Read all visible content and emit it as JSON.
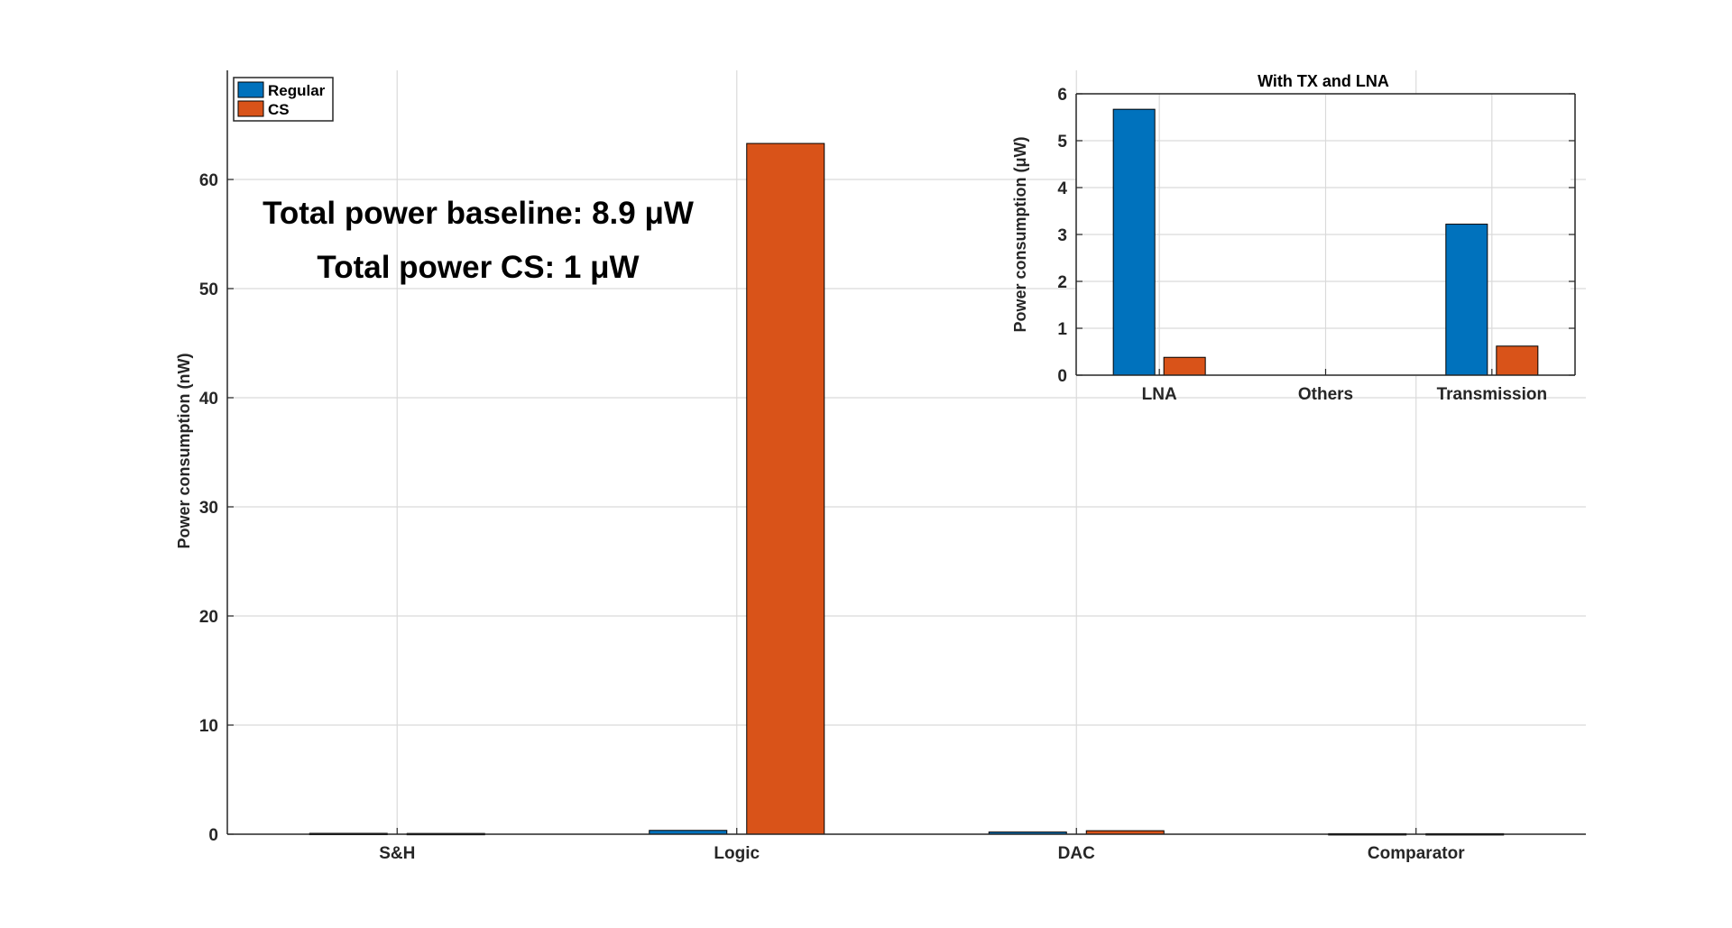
{
  "chart_data": [
    {
      "type": "bar",
      "categories": [
        "S&H",
        "Logic",
        "DAC",
        "Comparator"
      ],
      "series": [
        {
          "name": "Regular",
          "values": [
            0.08,
            0.35,
            0.2,
            0.05
          ]
        },
        {
          "name": "CS",
          "values": [
            0.07,
            63.3,
            0.32,
            0.05
          ]
        }
      ],
      "xlabel": "",
      "ylabel": "Power consumption (nW)",
      "ylim": [
        0,
        70
      ],
      "yticks": [
        0,
        10,
        20,
        30,
        40,
        50,
        60
      ],
      "grid": true,
      "legend_position": "top-left",
      "annotations": [
        "Total power baseline: 8.9 μW",
        "Total power CS: 1 μW"
      ]
    },
    {
      "type": "bar",
      "title": "With TX and LNA",
      "categories": [
        "LNA",
        "Others",
        "Transmission"
      ],
      "series": [
        {
          "name": "Regular",
          "values": [
            5.67,
            0,
            3.22
          ]
        },
        {
          "name": "CS",
          "values": [
            0.38,
            0,
            0.62
          ]
        }
      ],
      "xlabel": "",
      "ylabel": "Power consumption (μW)",
      "ylim": [
        0,
        6
      ],
      "yticks": [
        0,
        1,
        2,
        3,
        4,
        5,
        6
      ],
      "grid": true
    }
  ],
  "colors": {
    "regular": "#0072BD",
    "cs": "#D95319",
    "grid": "#DADADA",
    "axis": "#262626"
  }
}
